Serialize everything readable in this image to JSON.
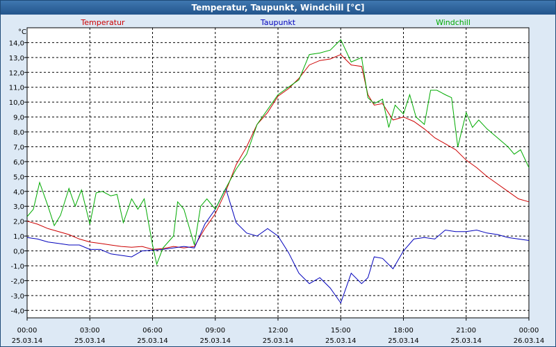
{
  "title": "Temperatur, Taupunkt, Windchill [°C]",
  "chart_data": {
    "type": "line",
    "title": "Temperatur, Taupunkt, Windchill [°C]",
    "ylabel": "°C",
    "ylim": [
      -4.5,
      15
    ],
    "y_ticks": [
      "14,0",
      "13,0",
      "12,0",
      "11,0",
      "10,0",
      "9,0",
      "8,0",
      "7,0",
      "6,0",
      "5,0",
      "4,0",
      "3,0",
      "2,0",
      "1,0",
      "0,0",
      "-1,0",
      "-2,0",
      "-3,0",
      "-4,0"
    ],
    "x_ticks": [
      {
        "time": "00:00",
        "date": "25.03.14"
      },
      {
        "time": "03:00",
        "date": "25.03.14"
      },
      {
        "time": "06:00",
        "date": "25.03.14"
      },
      {
        "time": "09:00",
        "date": "25.03.14"
      },
      {
        "time": "12:00",
        "date": "25.03.14"
      },
      {
        "time": "15:00",
        "date": "25.03.14"
      },
      {
        "time": "18:00",
        "date": "25.03.14"
      },
      {
        "time": "21:00",
        "date": "25.03.14"
      },
      {
        "time": "00:00",
        "date": "26.03.14"
      }
    ],
    "xlim_hours": [
      0,
      24
    ],
    "grid": true,
    "legend_position": "top",
    "series": [
      {
        "name": "Temperatur",
        "color": "#cc0000",
        "points": [
          [
            0,
            2.0
          ],
          [
            0.5,
            1.8
          ],
          [
            1,
            1.5
          ],
          [
            2,
            1.1
          ],
          [
            2.5,
            0.8
          ],
          [
            3,
            0.6
          ],
          [
            3.5,
            0.5
          ],
          [
            4,
            0.4
          ],
          [
            4.5,
            0.3
          ],
          [
            5,
            0.25
          ],
          [
            5.5,
            0.3
          ],
          [
            6,
            0.1
          ],
          [
            6.5,
            0.15
          ],
          [
            7,
            0.3
          ],
          [
            7.5,
            0.2
          ],
          [
            8,
            0.3
          ],
          [
            8.5,
            1.5
          ],
          [
            9,
            2.5
          ],
          [
            9.5,
            4.0
          ],
          [
            10,
            5.8
          ],
          [
            10.5,
            7.0
          ],
          [
            11,
            8.5
          ],
          [
            11.5,
            9.3
          ],
          [
            12,
            10.4
          ],
          [
            12.5,
            10.9
          ],
          [
            13,
            11.6
          ],
          [
            13.5,
            12.5
          ],
          [
            14,
            12.8
          ],
          [
            14.5,
            12.9
          ],
          [
            15,
            13.2
          ],
          [
            15.5,
            12.5
          ],
          [
            16,
            12.4
          ],
          [
            16.3,
            10.5
          ],
          [
            16.6,
            9.8
          ],
          [
            17,
            9.9
          ],
          [
            17.5,
            8.8
          ],
          [
            18,
            9.0
          ],
          [
            18.5,
            8.7
          ],
          [
            19,
            8.2
          ],
          [
            19.5,
            7.6
          ],
          [
            20,
            7.2
          ],
          [
            20.5,
            6.8
          ],
          [
            21,
            6.1
          ],
          [
            21.5,
            5.6
          ],
          [
            22,
            5.0
          ],
          [
            22.5,
            4.5
          ],
          [
            23,
            4.0
          ],
          [
            23.5,
            3.5
          ],
          [
            24,
            3.3
          ]
        ]
      },
      {
        "name": "Taupunkt",
        "color": "#0000bb",
        "points": [
          [
            0,
            0.9
          ],
          [
            0.5,
            0.8
          ],
          [
            1,
            0.6
          ],
          [
            1.5,
            0.5
          ],
          [
            2,
            0.4
          ],
          [
            2.5,
            0.4
          ],
          [
            3,
            0.1
          ],
          [
            3.5,
            0.1
          ],
          [
            4,
            -0.2
          ],
          [
            4.5,
            -0.3
          ],
          [
            5,
            -0.4
          ],
          [
            5.5,
            0.0
          ],
          [
            6,
            0.05
          ],
          [
            6.5,
            0.1
          ],
          [
            7,
            0.2
          ],
          [
            7.5,
            0.3
          ],
          [
            8,
            0.2
          ],
          [
            8.5,
            1.8
          ],
          [
            9,
            2.8
          ],
          [
            9.5,
            4.2
          ],
          [
            10,
            1.9
          ],
          [
            10.5,
            1.2
          ],
          [
            11,
            1.0
          ],
          [
            11.5,
            1.5
          ],
          [
            12,
            1.0
          ],
          [
            12.5,
            -0.1
          ],
          [
            13,
            -1.5
          ],
          [
            13.5,
            -2.2
          ],
          [
            14,
            -1.8
          ],
          [
            14.5,
            -2.5
          ],
          [
            15,
            -3.5
          ],
          [
            15.5,
            -1.5
          ],
          [
            16,
            -2.2
          ],
          [
            16.3,
            -1.8
          ],
          [
            16.6,
            -0.4
          ],
          [
            17,
            -0.5
          ],
          [
            17.5,
            -1.2
          ],
          [
            18,
            0.0
          ],
          [
            18.5,
            0.8
          ],
          [
            19,
            0.9
          ],
          [
            19.5,
            0.8
          ],
          [
            20,
            1.4
          ],
          [
            20.5,
            1.3
          ],
          [
            21,
            1.3
          ],
          [
            21.5,
            1.4
          ],
          [
            22,
            1.2
          ],
          [
            22.5,
            1.1
          ],
          [
            23,
            0.9
          ],
          [
            23.5,
            0.8
          ],
          [
            24,
            0.7
          ]
        ]
      },
      {
        "name": "Windchill",
        "color": "#00aa00",
        "points": [
          [
            0,
            2.3
          ],
          [
            0.3,
            2.8
          ],
          [
            0.6,
            4.6
          ],
          [
            1,
            3.0
          ],
          [
            1.3,
            1.7
          ],
          [
            1.6,
            2.4
          ],
          [
            2,
            4.2
          ],
          [
            2.3,
            3.0
          ],
          [
            2.6,
            4.1
          ],
          [
            3,
            1.8
          ],
          [
            3.3,
            3.9
          ],
          [
            3.6,
            4.0
          ],
          [
            4,
            3.7
          ],
          [
            4.3,
            3.8
          ],
          [
            4.6,
            1.9
          ],
          [
            5,
            3.5
          ],
          [
            5.3,
            2.8
          ],
          [
            5.6,
            3.5
          ],
          [
            6,
            0.4
          ],
          [
            6.2,
            -0.9
          ],
          [
            6.5,
            0.2
          ],
          [
            7,
            1.0
          ],
          [
            7.2,
            3.3
          ],
          [
            7.5,
            2.8
          ],
          [
            8,
            0.4
          ],
          [
            8.3,
            3.0
          ],
          [
            8.6,
            3.5
          ],
          [
            9,
            2.8
          ],
          [
            9.5,
            4.2
          ],
          [
            10,
            5.5
          ],
          [
            10.5,
            6.5
          ],
          [
            11,
            8.5
          ],
          [
            11.5,
            9.5
          ],
          [
            12,
            10.5
          ],
          [
            12.5,
            11.0
          ],
          [
            13,
            11.5
          ],
          [
            13.5,
            13.2
          ],
          [
            14,
            13.3
          ],
          [
            14.5,
            13.5
          ],
          [
            15,
            14.2
          ],
          [
            15.5,
            12.7
          ],
          [
            16,
            13.0
          ],
          [
            16.3,
            10.3
          ],
          [
            16.6,
            9.9
          ],
          [
            17,
            10.2
          ],
          [
            17.3,
            8.3
          ],
          [
            17.6,
            9.8
          ],
          [
            18,
            9.2
          ],
          [
            18.3,
            10.5
          ],
          [
            18.6,
            9.0
          ],
          [
            19,
            8.5
          ],
          [
            19.3,
            10.8
          ],
          [
            19.6,
            10.8
          ],
          [
            20,
            10.5
          ],
          [
            20.3,
            10.3
          ],
          [
            20.6,
            7.0
          ],
          [
            21,
            9.3
          ],
          [
            21.3,
            8.3
          ],
          [
            21.6,
            8.8
          ],
          [
            22,
            8.2
          ],
          [
            22.5,
            7.6
          ],
          [
            23,
            7.0
          ],
          [
            23.3,
            6.5
          ],
          [
            23.6,
            6.8
          ],
          [
            24,
            5.6
          ]
        ]
      }
    ]
  }
}
